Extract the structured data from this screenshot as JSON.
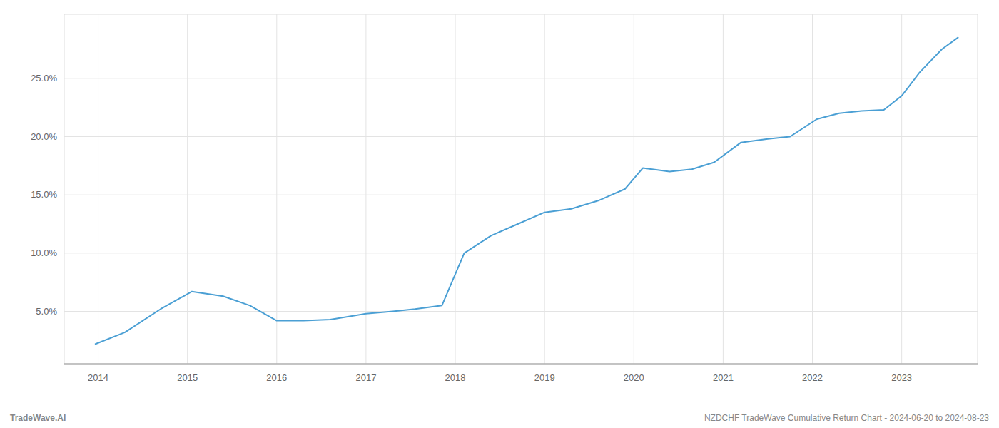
{
  "chart_data": {
    "type": "line",
    "x": [
      2013.97,
      2014.3,
      2014.7,
      2015.05,
      2015.4,
      2015.7,
      2016.0,
      2016.3,
      2016.6,
      2017.0,
      2017.3,
      2017.55,
      2017.85,
      2018.1,
      2018.4,
      2018.7,
      2019.0,
      2019.3,
      2019.6,
      2019.9,
      2020.1,
      2020.4,
      2020.65,
      2020.9,
      2021.2,
      2021.5,
      2021.75,
      2022.05,
      2022.3,
      2022.55,
      2022.8,
      2023.0,
      2023.2,
      2023.45,
      2023.63
    ],
    "values": [
      2.2,
      3.2,
      5.2,
      6.7,
      6.3,
      5.5,
      4.2,
      4.2,
      4.3,
      4.8,
      5.0,
      5.2,
      5.5,
      10.0,
      11.5,
      12.5,
      13.5,
      13.8,
      14.5,
      15.5,
      17.3,
      17.0,
      17.2,
      17.8,
      19.5,
      19.8,
      20.0,
      21.5,
      22.0,
      22.2,
      22.3,
      23.5,
      25.5,
      27.5,
      28.5
    ],
    "color": "#4a9fd4",
    "xlim": [
      2013.62,
      2023.85
    ],
    "xticks": [
      2014,
      2015,
      2016,
      2017,
      2018,
      2019,
      2020,
      2021,
      2022,
      2023
    ],
    "ylim": [
      0.5,
      30.5
    ],
    "yticks": [
      {
        "value": 5.0,
        "label": "5.0%"
      },
      {
        "value": 10.0,
        "label": "10.0%"
      },
      {
        "value": 15.0,
        "label": "15.0%"
      },
      {
        "value": 20.0,
        "label": "20.0%"
      },
      {
        "value": 25.0,
        "label": "25.0%"
      }
    ],
    "grid": true,
    "annotations": [
      "TradeWave.AI",
      "NZDCHF TradeWave Cumulative Return Chart - 2024-06-20 to 2024-08-23"
    ]
  }
}
